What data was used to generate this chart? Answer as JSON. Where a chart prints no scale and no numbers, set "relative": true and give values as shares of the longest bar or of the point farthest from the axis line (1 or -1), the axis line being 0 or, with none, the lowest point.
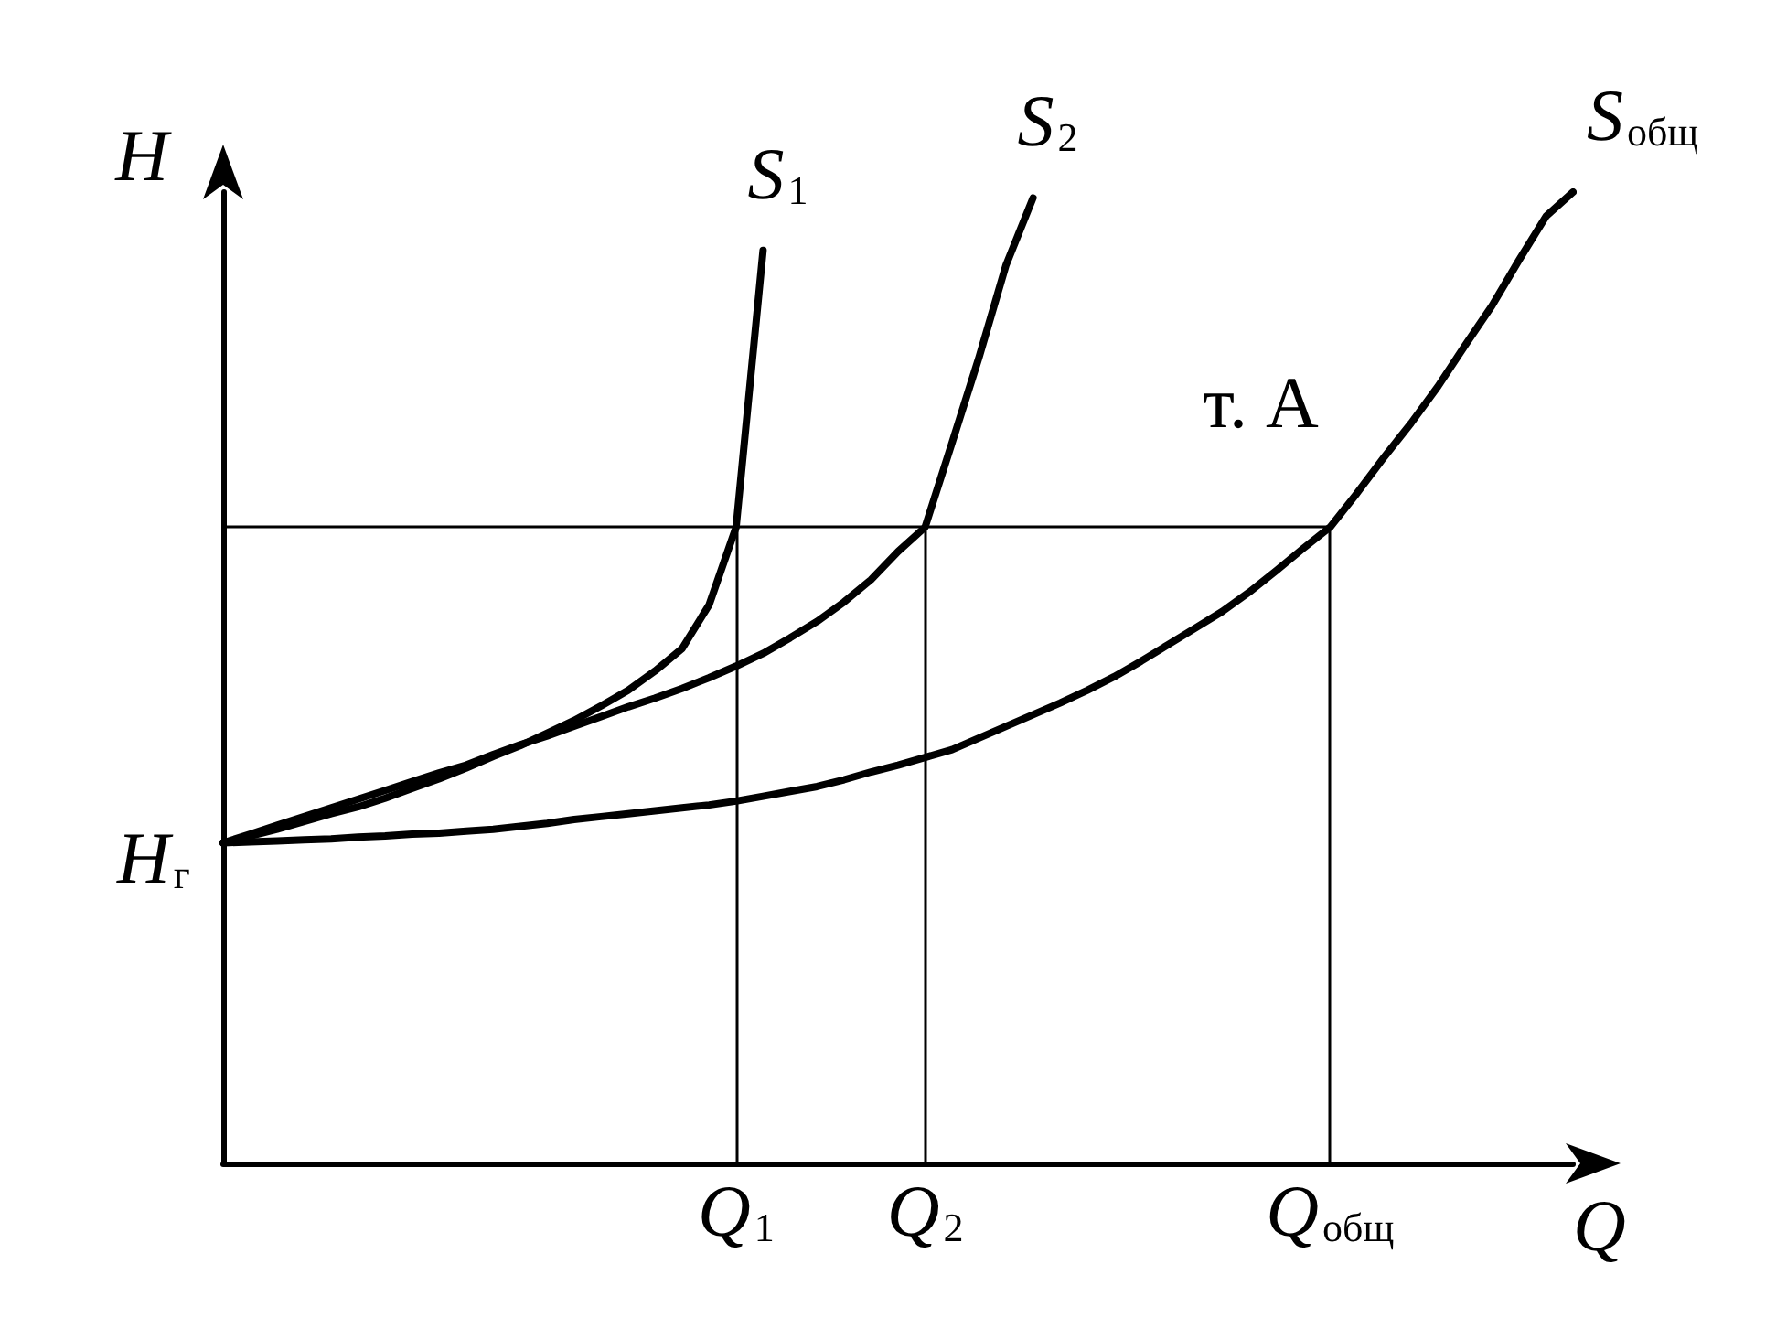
{
  "chart_data": {
    "type": "line",
    "relative": true,
    "xlabel": "Q",
    "ylabel": "H",
    "categories": [
      null,
      null,
      null,
      null,
      null,
      null,
      null,
      null,
      null,
      null,
      null,
      null,
      null,
      null,
      null,
      null,
      null,
      null,
      null,
      "Q$_{1}$",
      null,
      null,
      null,
      null,
      null,
      null,
      "Q$_{2}$",
      null,
      null,
      null,
      null,
      null,
      null,
      null,
      null,
      null,
      null,
      null,
      null,
      null,
      null,
      "Q$_{общ}$",
      null,
      null,
      null,
      null,
      null,
      null,
      null,
      null,
      null
    ],
    "series": [
      {
        "name": "S$_{1}$",
        "color": "#000000",
        "values": [
          0.33,
          0.337,
          0.344,
          0.352,
          0.36,
          0.367,
          0.376,
          0.386,
          0.396,
          0.407,
          0.419,
          0.43,
          0.443,
          0.456,
          0.471,
          0.487,
          0.507,
          0.53,
          0.575,
          0.655,
          0.94,
          null,
          null,
          null,
          null,
          null,
          null,
          null,
          null,
          null,
          null,
          null,
          null,
          null,
          null,
          null,
          null,
          null,
          null,
          null,
          null,
          null,
          null,
          null,
          null,
          null,
          null,
          null,
          null,
          null,
          null
        ]
      },
      {
        "name": "S$_{2}$",
        "color": "#000000",
        "values": [
          0.33,
          0.339,
          0.348,
          0.357,
          0.366,
          0.375,
          0.384,
          0.393,
          0.402,
          0.41,
          0.421,
          0.431,
          0.44,
          0.45,
          0.46,
          0.47,
          0.479,
          0.489,
          0.5,
          0.512,
          0.525,
          0.541,
          0.558,
          0.578,
          0.601,
          0.63,
          0.655,
          0.742,
          0.83,
          0.925,
          0.994,
          null,
          null,
          null,
          null,
          null,
          null,
          null,
          null,
          null,
          null,
          null,
          null,
          null,
          null,
          null,
          null,
          null,
          null,
          null,
          null
        ]
      },
      {
        "name": "S$_{общ}$",
        "color": "#000000",
        "values": [
          0.33,
          0.331,
          0.332,
          0.333,
          0.334,
          0.336,
          0.337,
          0.339,
          0.34,
          0.342,
          0.344,
          0.347,
          0.35,
          0.354,
          0.357,
          0.36,
          0.363,
          0.366,
          0.369,
          0.373,
          0.378,
          0.383,
          0.388,
          0.395,
          0.403,
          0.41,
          0.418,
          0.426,
          0.438,
          0.45,
          0.462,
          0.474,
          0.487,
          0.501,
          0.517,
          0.534,
          0.551,
          0.568,
          0.588,
          0.61,
          0.633,
          0.655,
          0.69,
          0.727,
          0.762,
          0.8,
          0.842,
          0.883,
          0.93,
          0.975,
          1
        ]
      }
    ],
    "ref_lines": [
      {
        "axis": "y",
        "value": 0.655,
        "label": null
      },
      {
        "axis": "x",
        "value": "Q$_{1}$",
        "label": null
      },
      {
        "axis": "x",
        "value": "Q$_{2}$",
        "label": null
      },
      {
        "axis": "x",
        "value": "Q$_{общ}$",
        "label": null
      }
    ],
    "annotations": [
      "H$_{г}$",
      {
        "text": "т. A",
        "x": "Q$_{общ}$",
        "y": 0.655
      }
    ]
  }
}
